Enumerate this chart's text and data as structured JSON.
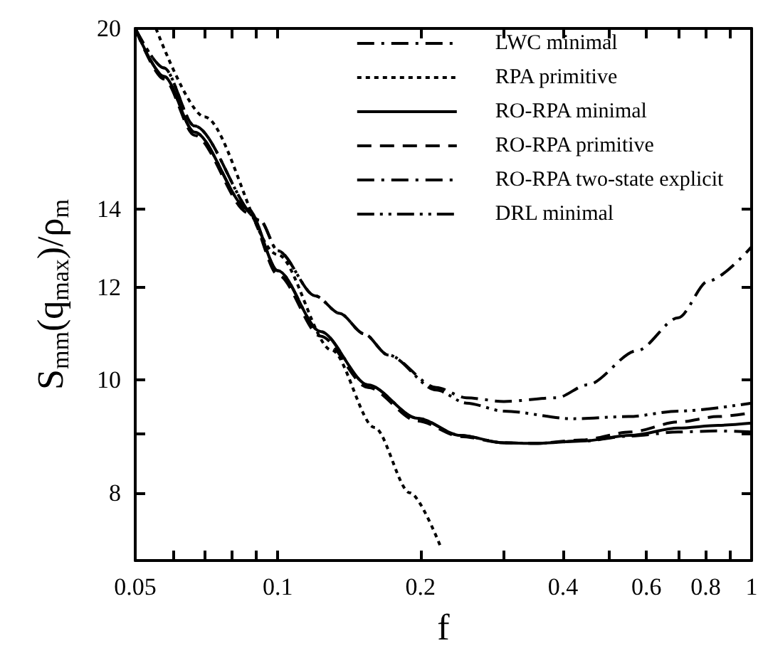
{
  "chart_data": {
    "type": "line",
    "xlabel": "f",
    "ylabel": "S$_{mm}$(q$_{max}$)/ρ$_{m}$",
    "log": "xy",
    "grid": false,
    "legend": "top right",
    "marker": "none",
    "xlim": [
      0.05,
      1
    ],
    "ylim": [
      7,
      20
    ],
    "xticks": [
      0.05,
      {
        "value": 0.06,
        "label": null
      },
      {
        "value": 0.07,
        "label": null
      },
      {
        "value": 0.08,
        "label": null
      },
      {
        "value": 0.09,
        "label": null
      },
      0.1,
      0.2,
      {
        "value": 0.3,
        "label": null
      },
      0.4,
      {
        "value": 0.5,
        "label": null
      },
      0.6,
      {
        "value": 0.7,
        "label": null
      },
      0.8,
      {
        "value": 0.9,
        "label": null
      },
      1
    ],
    "yticks": [
      8,
      {
        "value": 9,
        "label": null
      },
      10,
      12,
      14,
      20
    ],
    "series": [
      {
        "name": "LWC minimal",
        "color": "#000000",
        "line_style": "dashdot",
        "x": [
          0.05,
          0.0575,
          0.0667,
          0.0917,
          0.1,
          0.12,
          0.135,
          0.152,
          0.171,
          0.216,
          0.25,
          0.3,
          0.388,
          0.45,
          0.573,
          0.7,
          0.81,
          1
        ],
        "values": [
          20,
          18.5,
          16.5,
          13.7,
          12.9,
          11.8,
          11.4,
          10.95,
          10.5,
          9.85,
          9.65,
          9.58,
          9.65,
          9.9,
          10.59,
          11.3,
          12.15,
          13
        ]
      },
      {
        "name": "RPA primitive",
        "color": "#000000",
        "line_style": "dotted",
        "x": [
          0.0553,
          0.07,
          0.1,
          0.13,
          0.16,
          0.19,
          0.221
        ],
        "values": [
          20,
          16.8,
          12.8,
          10.6,
          9.1,
          8,
          7.18
        ]
      },
      {
        "name": "RO-RPA minimal",
        "color": "#000000",
        "line_style": "solid",
        "x": [
          0.05,
          0.0575,
          0.0667,
          0.0867,
          0.1,
          0.123,
          0.155,
          0.197,
          0.243,
          0.3,
          0.347,
          0.438,
          0.555,
          0.7,
          0.85,
          1
        ],
        "values": [
          20,
          18.2,
          16.3,
          14,
          12.4,
          11,
          9.9,
          9.27,
          8.96,
          8.83,
          8.82,
          8.86,
          8.96,
          9.09,
          9.14,
          9.18
        ]
      },
      {
        "name": "RO-RPA primitive",
        "color": "#000000",
        "line_style": "dashed",
        "x": [
          0.05,
          0.0575,
          0.0667,
          0.0867,
          0.1,
          0.123,
          0.155,
          0.197,
          0.243,
          0.3,
          0.347,
          0.438,
          0.555,
          0.7,
          0.85,
          1
        ],
        "values": [
          20,
          18.1,
          16.2,
          13.9,
          12.3,
          10.9,
          9.85,
          9.22,
          8.94,
          8.83,
          8.82,
          8.88,
          9.02,
          9.2,
          9.3,
          9.37
        ]
      },
      {
        "name": "RO-RPA two-state explicit",
        "color": "#000000",
        "line_style": "dashdot",
        "x": [
          0.05,
          0.0575,
          0.0667,
          0.0867,
          0.1,
          0.123,
          0.155,
          0.197,
          0.243,
          0.3,
          0.347,
          0.438,
          0.555,
          0.7,
          0.85,
          1
        ],
        "values": [
          20,
          18.2,
          16.3,
          14,
          12.4,
          11,
          9.9,
          9.27,
          8.96,
          8.83,
          8.82,
          8.86,
          8.95,
          9.02,
          9.04,
          9.02
        ]
      },
      {
        "name": "DRL minimal",
        "color": "#000000",
        "line_style": "dashdotdot",
        "x": [
          0.05,
          0.0575,
          0.0667,
          0.0917,
          0.1,
          0.12,
          0.135,
          0.152,
          0.171,
          0.216,
          0.25,
          0.3,
          0.418,
          0.55,
          0.7,
          1
        ],
        "values": [
          20,
          18.5,
          16.5,
          13.7,
          12.9,
          11.8,
          11.4,
          10.95,
          10.5,
          9.8,
          9.55,
          9.4,
          9.26,
          9.3,
          9.4,
          9.55
        ]
      }
    ]
  }
}
